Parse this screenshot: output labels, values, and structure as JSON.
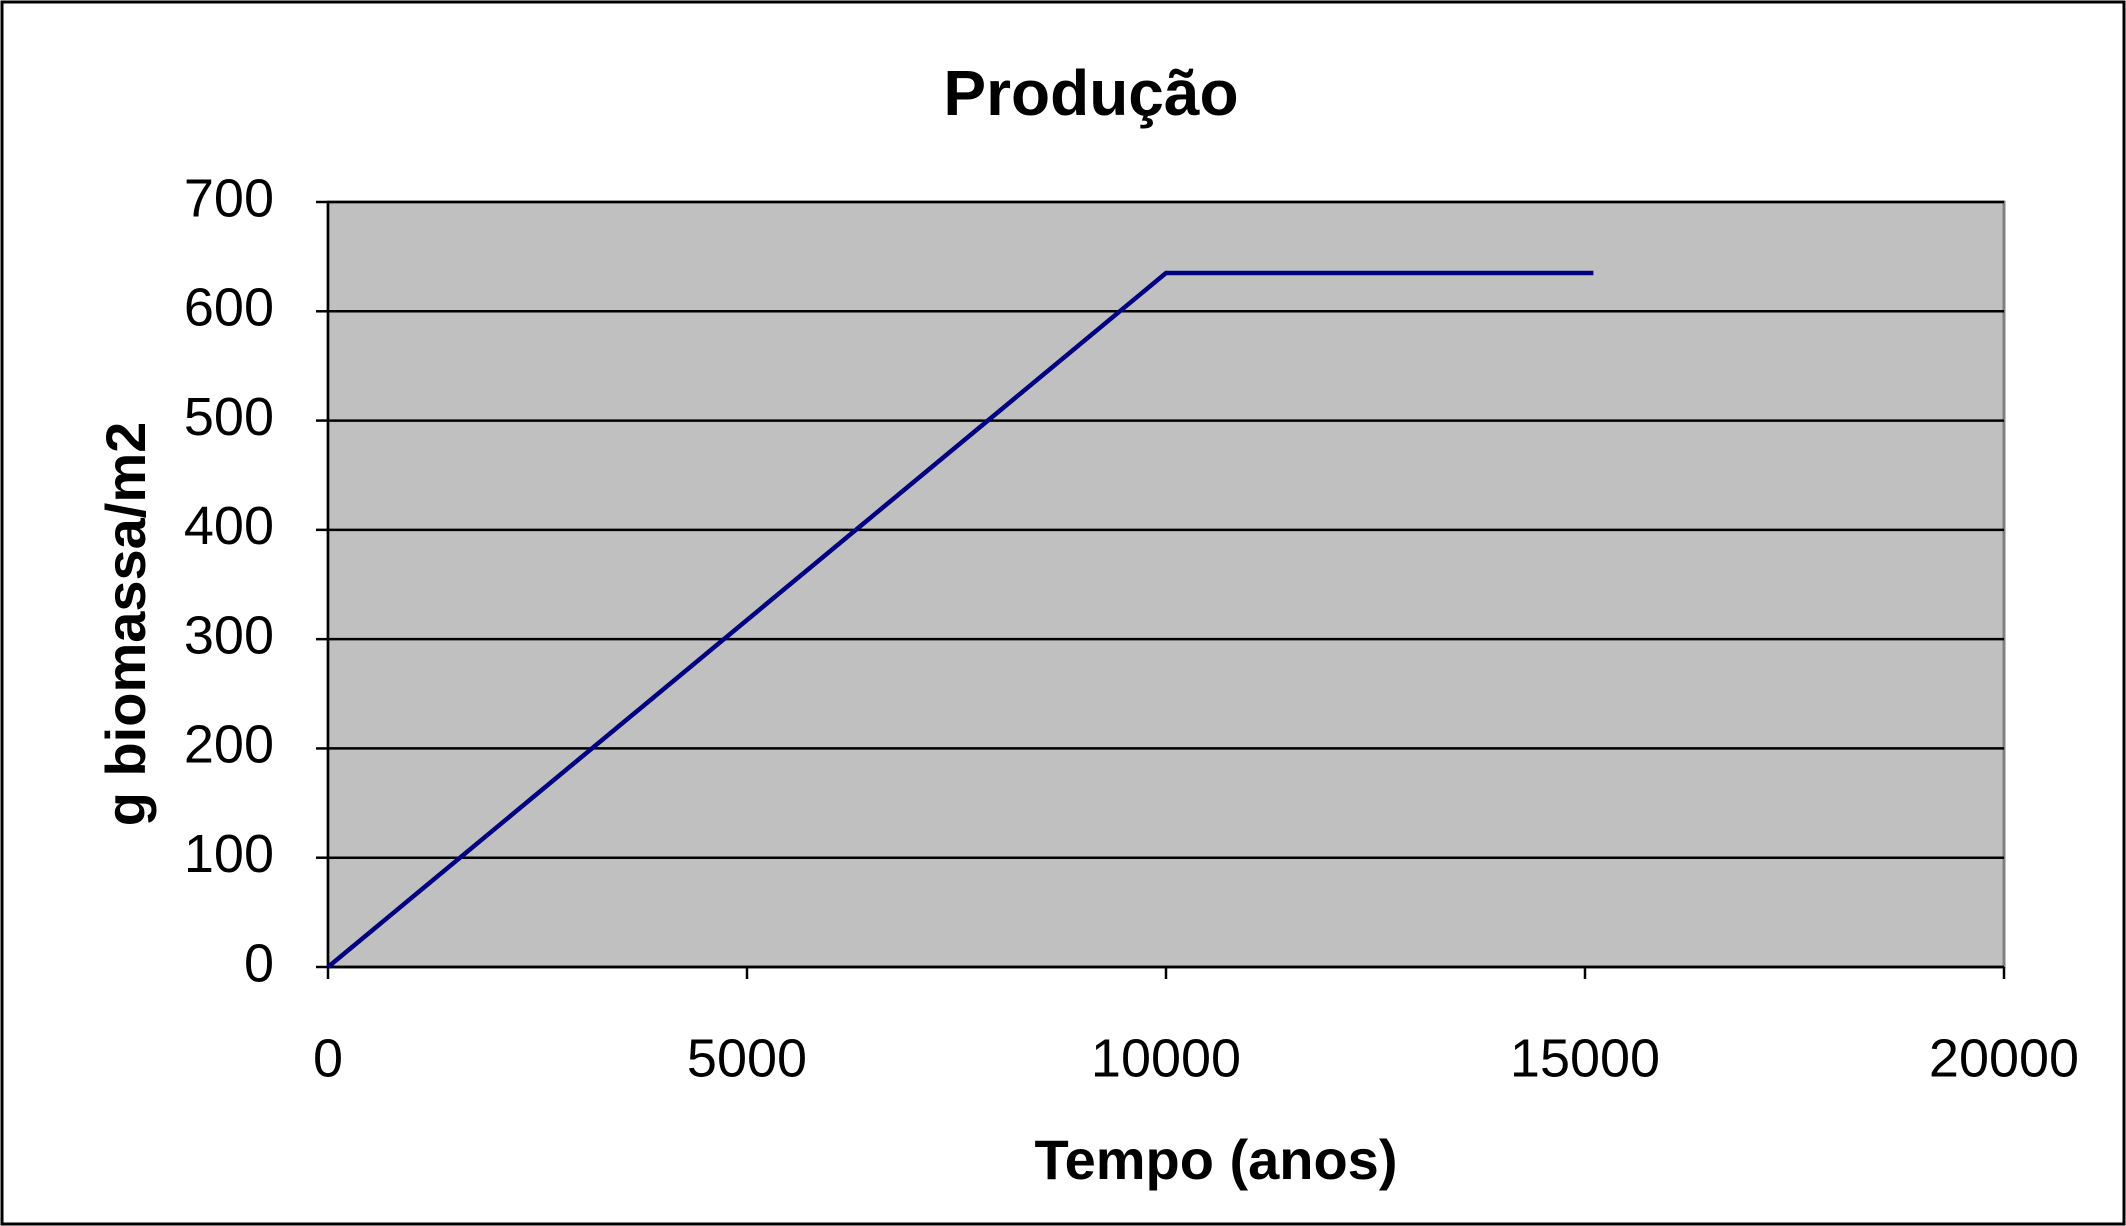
{
  "chart_data": {
    "type": "line",
    "title": "Produção",
    "x_label": "Tempo  (anos)",
    "y_label": "g biomassa/m2",
    "x": [
      0,
      10000,
      15100
    ],
    "series": [
      {
        "name": "Produção",
        "color": "#000080",
        "values": [
          0,
          635,
          635
        ]
      }
    ],
    "xlim": [
      0,
      20000
    ],
    "xticks": [
      0,
      5000,
      10000,
      15000,
      20000
    ],
    "ylim": [
      0,
      700
    ],
    "yticks": [
      0,
      100,
      200,
      300,
      400,
      500,
      600,
      700
    ],
    "grid": true,
    "plot_background": "#c0c0c0"
  }
}
